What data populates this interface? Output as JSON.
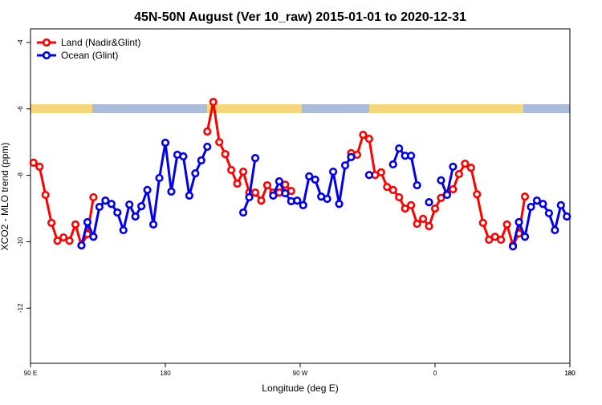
{
  "chart_data": {
    "type": "line",
    "title": "45N-50N August (Ver 10_raw)   2015-01-01 to 2020-12-31",
    "xlabel": "Longitude (deg E)",
    "ylabel": "XCO2 - MLO trend (ppm)",
    "x": [
      92,
      96,
      100,
      104,
      108,
      112,
      116,
      120,
      124,
      128,
      132,
      136,
      140,
      144,
      148,
      152,
      156,
      160,
      164,
      168,
      172,
      176,
      180,
      184,
      188,
      192,
      196,
      200,
      204,
      208,
      212,
      216,
      220,
      224,
      228,
      232,
      236,
      240,
      244,
      248,
      252,
      256,
      260,
      264,
      268,
      272,
      276,
      280,
      284,
      288,
      292,
      296,
      300,
      304,
      308,
      312,
      316,
      320,
      324,
      328,
      332,
      336,
      340,
      344,
      348,
      352,
      356,
      360,
      364,
      368,
      372,
      376,
      380,
      384,
      388,
      392,
      396,
      400,
      404,
      408,
      412,
      416,
      420,
      424,
      428,
      432,
      436,
      440,
      444,
      448
    ],
    "series": [
      {
        "name": "Land (Nadir&Glint)",
        "color": "#ff0000",
        "values": [
          -7.62,
          -7.74,
          -8.59,
          -9.43,
          -9.97,
          -9.87,
          -9.97,
          -9.48,
          -10.11,
          -9.77,
          -8.66,
          null,
          null,
          null,
          null,
          null,
          null,
          null,
          null,
          null,
          null,
          null,
          null,
          null,
          null,
          null,
          null,
          null,
          null,
          -6.68,
          -5.79,
          -7.0,
          -7.36,
          -7.84,
          -8.25,
          -7.89,
          -8.52,
          -8.52,
          -8.76,
          -8.3,
          -8.52,
          -8.52,
          -8.28,
          -8.47,
          null,
          null,
          null,
          null,
          null,
          null,
          null,
          null,
          null,
          -7.33,
          -7.38,
          -6.78,
          -6.9,
          -7.99,
          -7.91,
          -8.35,
          -8.44,
          -8.66,
          -9.0,
          -8.9,
          -9.46,
          -9.31,
          -9.53,
          -9.0,
          -8.68,
          -8.57,
          -8.42,
          -7.96,
          -7.65,
          -7.77,
          -8.57,
          -9.43,
          -9.94,
          -9.85,
          -9.94,
          -9.48,
          -10.11,
          -9.75,
          -8.64,
          null,
          null,
          null,
          null,
          null,
          null,
          null
        ]
      },
      {
        "name": "Ocean (Glint)",
        "color": "#0000ee",
        "values": [
          null,
          null,
          null,
          null,
          null,
          null,
          null,
          null,
          -10.11,
          -9.41,
          -9.85,
          -8.95,
          -8.76,
          -8.86,
          -9.12,
          -9.65,
          -8.88,
          -9.24,
          -8.93,
          -8.44,
          -9.48,
          -8.08,
          -7.02,
          -8.49,
          -7.38,
          -7.43,
          -8.61,
          -7.94,
          -7.55,
          -7.14,
          null,
          null,
          null,
          null,
          null,
          -9.12,
          -8.66,
          -7.48,
          null,
          null,
          -8.61,
          -8.18,
          -8.54,
          -8.78,
          -8.76,
          -8.9,
          -8.03,
          -8.13,
          -8.64,
          -8.71,
          -7.89,
          -8.86,
          -7.7,
          -7.45,
          null,
          null,
          -7.99,
          null,
          null,
          null,
          -7.67,
          -7.19,
          -7.41,
          -7.41,
          -8.3,
          null,
          -8.81,
          null,
          -8.15,
          -8.59,
          -7.74,
          null,
          null,
          null,
          null,
          null,
          null,
          null,
          null,
          null,
          -10.14,
          -9.41,
          -9.85,
          -8.95,
          -8.76,
          -8.86,
          -9.14,
          -9.65,
          -8.9,
          -9.24
        ]
      }
    ],
    "xlim": [
      90,
      450
    ],
    "xticks": [
      {
        "value": 90,
        "label": "90 E"
      },
      180,
      {
        "value": 270,
        "label": "90 W"
      },
      {
        "value": 360,
        "label": "0"
      },
      {
        "value": 450,
        "label": "180"
      },
      {
        "value": 450,
        "label": "180"
      }
    ],
    "ylim": [
      -13.66,
      -3.59
    ],
    "yticks": [
      -4,
      -6,
      -8,
      -10,
      -12
    ],
    "legend": "top-left"
  }
}
